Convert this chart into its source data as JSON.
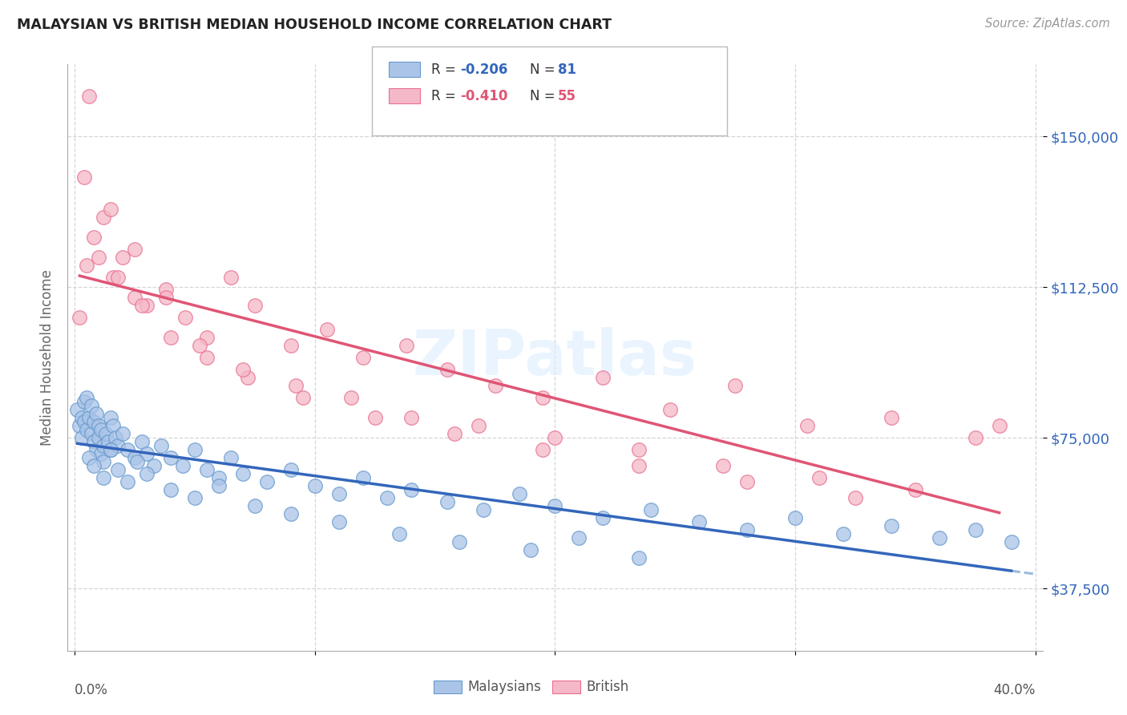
{
  "title": "MALAYSIAN VS BRITISH MEDIAN HOUSEHOLD INCOME CORRELATION CHART",
  "source": "Source: ZipAtlas.com",
  "ylabel": "Median Household Income",
  "yticks": [
    37500,
    75000,
    112500,
    150000
  ],
  "ytick_labels": [
    "$37,500",
    "$75,000",
    "$112,500",
    "$150,000"
  ],
  "xlim": [
    -0.003,
    0.403
  ],
  "ylim": [
    22000,
    168000
  ],
  "color_malaysian_fill": "#aac4e8",
  "color_malaysian_edge": "#6699cc",
  "color_british_fill": "#f5b8c8",
  "color_british_edge": "#e87090",
  "color_line_malaysian": "#3366bb",
  "color_line_british": "#e05575",
  "color_line_dashed": "#99bbdd",
  "watermark": "ZIPatlas",
  "malaysian_x": [
    0.001,
    0.002,
    0.003,
    0.003,
    0.004,
    0.004,
    0.005,
    0.005,
    0.006,
    0.007,
    0.007,
    0.008,
    0.008,
    0.009,
    0.009,
    0.01,
    0.01,
    0.011,
    0.011,
    0.012,
    0.012,
    0.013,
    0.014,
    0.015,
    0.015,
    0.016,
    0.017,
    0.018,
    0.02,
    0.022,
    0.025,
    0.028,
    0.03,
    0.033,
    0.036,
    0.04,
    0.045,
    0.05,
    0.055,
    0.06,
    0.065,
    0.07,
    0.08,
    0.09,
    0.1,
    0.11,
    0.12,
    0.13,
    0.14,
    0.155,
    0.17,
    0.185,
    0.2,
    0.22,
    0.24,
    0.26,
    0.28,
    0.3,
    0.32,
    0.34,
    0.36,
    0.375,
    0.39,
    0.006,
    0.008,
    0.012,
    0.015,
    0.018,
    0.022,
    0.026,
    0.03,
    0.04,
    0.05,
    0.06,
    0.075,
    0.09,
    0.11,
    0.135,
    0.16,
    0.19,
    0.21,
    0.235
  ],
  "malaysian_y": [
    82000,
    78000,
    75000,
    80000,
    84000,
    79000,
    77000,
    85000,
    80000,
    83000,
    76000,
    79000,
    74000,
    72000,
    81000,
    75000,
    78000,
    71000,
    77000,
    73000,
    69000,
    76000,
    74000,
    80000,
    72000,
    78000,
    75000,
    73000,
    76000,
    72000,
    70000,
    74000,
    71000,
    68000,
    73000,
    70000,
    68000,
    72000,
    67000,
    65000,
    70000,
    66000,
    64000,
    67000,
    63000,
    61000,
    65000,
    60000,
    62000,
    59000,
    57000,
    61000,
    58000,
    55000,
    57000,
    54000,
    52000,
    55000,
    51000,
    53000,
    50000,
    52000,
    49000,
    70000,
    68000,
    65000,
    72000,
    67000,
    64000,
    69000,
    66000,
    62000,
    60000,
    63000,
    58000,
    56000,
    54000,
    51000,
    49000,
    47000,
    50000,
    45000
  ],
  "british_x": [
    0.002,
    0.005,
    0.008,
    0.012,
    0.016,
    0.02,
    0.025,
    0.03,
    0.038,
    0.046,
    0.055,
    0.065,
    0.075,
    0.09,
    0.105,
    0.12,
    0.138,
    0.155,
    0.175,
    0.195,
    0.22,
    0.248,
    0.275,
    0.305,
    0.34,
    0.375,
    0.004,
    0.01,
    0.018,
    0.028,
    0.04,
    0.055,
    0.072,
    0.092,
    0.115,
    0.14,
    0.168,
    0.2,
    0.235,
    0.27,
    0.31,
    0.35,
    0.385,
    0.006,
    0.015,
    0.025,
    0.038,
    0.052,
    0.07,
    0.095,
    0.125,
    0.158,
    0.195,
    0.235,
    0.28,
    0.325
  ],
  "british_y": [
    105000,
    118000,
    125000,
    130000,
    115000,
    120000,
    110000,
    108000,
    112000,
    105000,
    100000,
    115000,
    108000,
    98000,
    102000,
    95000,
    98000,
    92000,
    88000,
    85000,
    90000,
    82000,
    88000,
    78000,
    80000,
    75000,
    140000,
    120000,
    115000,
    108000,
    100000,
    95000,
    90000,
    88000,
    85000,
    80000,
    78000,
    75000,
    72000,
    68000,
    65000,
    62000,
    78000,
    160000,
    132000,
    122000,
    110000,
    98000,
    92000,
    85000,
    80000,
    76000,
    72000,
    68000,
    64000,
    60000
  ]
}
